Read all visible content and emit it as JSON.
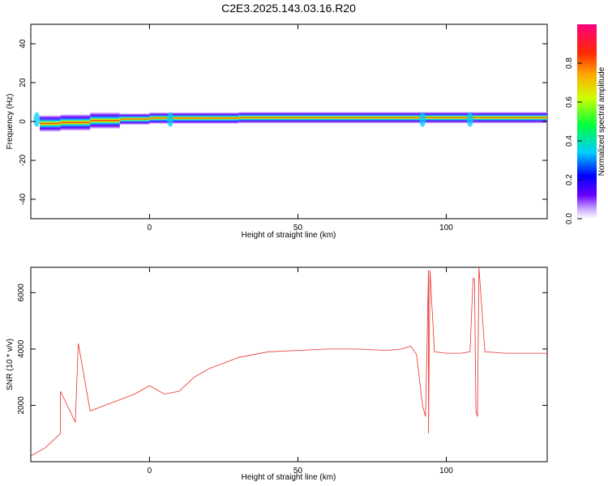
{
  "chart_data": [
    {
      "type": "heatmap",
      "title": "C2E3.2025.143.03.16.R20",
      "xlabel": "Height of straight line (km)",
      "ylabel": "Frequency (Hz)",
      "xlim": [
        -40,
        134
      ],
      "ylim": [
        -50,
        50
      ],
      "x_ticks": [
        "0",
        "50",
        "100"
      ],
      "y_ticks": [
        "-40",
        "-20",
        "0",
        "20",
        "40"
      ],
      "colorbar": {
        "label": "Normalized spectral amplitude",
        "range": [
          0,
          1
        ],
        "ticks": [
          "0.0",
          "0.2",
          "0.4",
          "0.6",
          "0.8"
        ]
      },
      "ridge": {
        "frequency_hz": [
          {
            "x": -37,
            "y": -1
          },
          {
            "x": -30,
            "y": -1
          },
          {
            "x": -20,
            "y": 0
          },
          {
            "x": -10,
            "y": 1
          },
          {
            "x": 0,
            "y": 1.5
          },
          {
            "x": 30,
            "y": 2
          },
          {
            "x": 90,
            "y": 2
          },
          {
            "x": 110,
            "y": 2
          },
          {
            "x": 134,
            "y": 2
          }
        ],
        "disturbances_km": [
          -38,
          7,
          92,
          108
        ]
      }
    },
    {
      "type": "line",
      "xlabel": "Height of straight line (km)",
      "ylabel": "SNR (10 * v/v)",
      "xlim": [
        -40,
        134
      ],
      "ylim": [
        0,
        6900
      ],
      "x_ticks": [
        "0",
        "50",
        "100"
      ],
      "y_ticks": [
        "2000",
        "4000",
        "6000"
      ],
      "series": [
        {
          "color": "#e8302a",
          "x": [
            -40,
            -35,
            -30,
            -25,
            -20,
            -15,
            -10,
            -5,
            0,
            5,
            10,
            15,
            20,
            25,
            30,
            35,
            40,
            50,
            60,
            70,
            80,
            85,
            88,
            90,
            92,
            93,
            94,
            96,
            100,
            105,
            108,
            109,
            110,
            111,
            113,
            120,
            134
          ],
          "y": [
            200,
            500,
            1000,
            1400,
            1800,
            2000,
            2200,
            2400,
            2700,
            2400,
            2500,
            3000,
            3300,
            3500,
            3700,
            3800,
            3900,
            3950,
            4000,
            4000,
            3950,
            4000,
            4100,
            3800,
            2000,
            1600,
            6800,
            3900,
            3850,
            3850,
            3900,
            6500,
            1800,
            6900,
            3900,
            3850,
            3850
          ]
        }
      ],
      "spikes": [
        {
          "x": -30,
          "y": 2500
        },
        {
          "x": -24,
          "y": 4200
        },
        {
          "x": 94,
          "y": 1000
        },
        {
          "x": 94.5,
          "y": 6800
        },
        {
          "x": 109.5,
          "y": 6500
        },
        {
          "x": 110.5,
          "y": 1600
        },
        {
          "x": 111,
          "y": 6900
        }
      ]
    }
  ]
}
